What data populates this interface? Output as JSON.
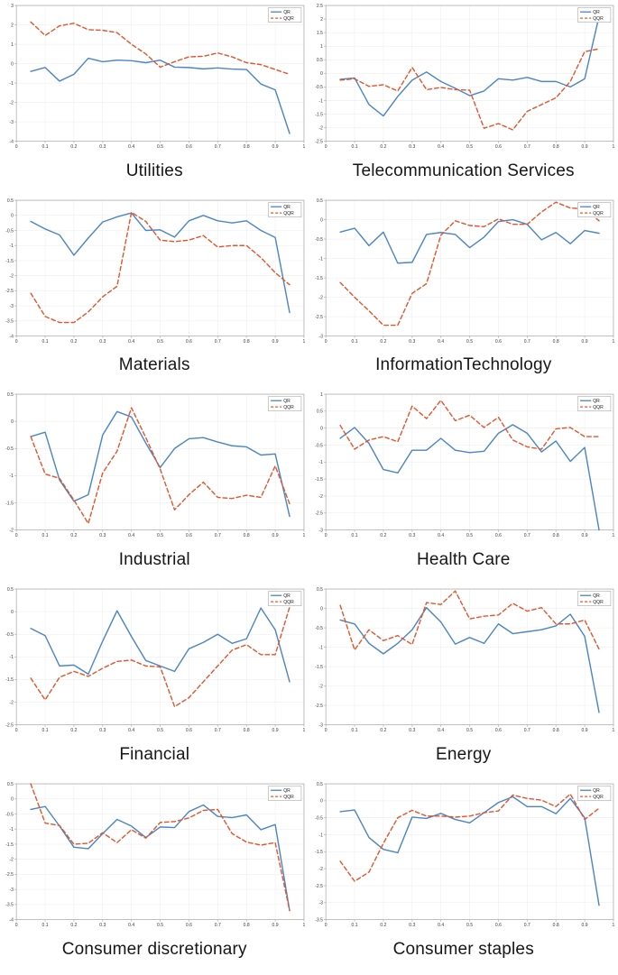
{
  "page": {
    "background": "#ffffff"
  },
  "style": {
    "qr_color": "#4a85c6",
    "qqr_color": "#e2552b",
    "grid_color": "#ebebeb",
    "axis_color": "#a8a8a8",
    "tick_text_color": "#3a3a3a",
    "legend_border_color": "#999999"
  },
  "chart_data": [
    {
      "type": "line",
      "title": "Utilities",
      "xlabel": "",
      "ylabel": "",
      "xlim": [
        0,
        1
      ],
      "ylim": [
        -4,
        3
      ],
      "xticks": [
        0,
        0.1,
        0.2,
        0.3,
        0.4,
        0.5,
        0.6,
        0.7,
        0.8,
        0.9,
        1
      ],
      "yticks": [
        3,
        2,
        1,
        0,
        -1,
        -2,
        -3,
        -4
      ],
      "grid": true,
      "legend_position": "top-right",
      "x": [
        0.05,
        0.1,
        0.15,
        0.2,
        0.25,
        0.3,
        0.35,
        0.4,
        0.45,
        0.5,
        0.55,
        0.6,
        0.65,
        0.7,
        0.75,
        0.8,
        0.85,
        0.9,
        0.95
      ],
      "series": [
        {
          "name": "QR",
          "style": "solid",
          "color": "#4a85c6",
          "values": [
            -0.4,
            -0.2,
            -0.9,
            -0.55,
            0.28,
            0.1,
            0.18,
            0.15,
            0.05,
            0.18,
            -0.18,
            -0.2,
            -0.27,
            -0.22,
            -0.28,
            -0.3,
            -1.05,
            -1.35,
            -3.6
          ]
        },
        {
          "name": "QQR",
          "style": "dashed",
          "color": "#e2552b",
          "values": [
            2.15,
            1.45,
            1.95,
            2.08,
            1.75,
            1.72,
            1.6,
            1.0,
            0.5,
            -0.18,
            0.1,
            0.35,
            0.38,
            0.55,
            0.35,
            0.05,
            -0.05,
            -0.3,
            -0.55
          ]
        }
      ]
    },
    {
      "type": "line",
      "title": "Telecommunication Services",
      "xlabel": "",
      "ylabel": "",
      "xlim": [
        0,
        1
      ],
      "ylim": [
        -2.5,
        2.5
      ],
      "xticks": [
        0,
        0.1,
        0.2,
        0.3,
        0.4,
        0.5,
        0.6,
        0.7,
        0.8,
        0.9,
        1
      ],
      "yticks": [
        2.5,
        2,
        1.5,
        1,
        0.5,
        0,
        -0.5,
        -1,
        -1.5,
        -2,
        -2.5
      ],
      "grid": true,
      "legend_position": "top-right",
      "x": [
        0.05,
        0.1,
        0.15,
        0.2,
        0.25,
        0.3,
        0.35,
        0.4,
        0.45,
        0.5,
        0.55,
        0.6,
        0.65,
        0.7,
        0.75,
        0.8,
        0.85,
        0.9,
        0.95
      ],
      "series": [
        {
          "name": "QR",
          "style": "solid",
          "color": "#4a85c6",
          "values": [
            -0.22,
            -0.17,
            -1.15,
            -1.57,
            -0.85,
            -0.25,
            0.05,
            -0.3,
            -0.55,
            -0.82,
            -0.65,
            -0.2,
            -0.25,
            -0.15,
            -0.3,
            -0.3,
            -0.5,
            -0.2,
            2.1
          ]
        },
        {
          "name": "QQR",
          "style": "dashed",
          "color": "#e2552b",
          "values": [
            -0.25,
            -0.2,
            -0.48,
            -0.42,
            -0.65,
            0.22,
            -0.6,
            -0.52,
            -0.6,
            -0.62,
            -2.02,
            -1.85,
            -2.08,
            -1.4,
            -1.15,
            -0.9,
            -0.3,
            0.8,
            0.9
          ]
        }
      ]
    },
    {
      "type": "line",
      "title": "Materials",
      "xlabel": "",
      "ylabel": "",
      "xlim": [
        0,
        1
      ],
      "ylim": [
        -4,
        0.5
      ],
      "xticks": [
        0,
        0.1,
        0.2,
        0.3,
        0.4,
        0.5,
        0.6,
        0.7,
        0.8,
        0.9,
        1
      ],
      "yticks": [
        0.5,
        0,
        -0.5,
        -1,
        -1.5,
        -2,
        -2.5,
        -3,
        -3.5,
        -4
      ],
      "grid": true,
      "legend_position": "top-right",
      "x": [
        0.05,
        0.1,
        0.15,
        0.2,
        0.25,
        0.3,
        0.35,
        0.4,
        0.45,
        0.5,
        0.55,
        0.6,
        0.65,
        0.7,
        0.75,
        0.8,
        0.85,
        0.9,
        0.95
      ],
      "series": [
        {
          "name": "QR",
          "style": "solid",
          "color": "#4a85c6",
          "values": [
            -0.2,
            -0.45,
            -0.65,
            -1.32,
            -0.75,
            -0.22,
            -0.05,
            0.08,
            -0.5,
            -0.48,
            -0.72,
            -0.18,
            0.0,
            -0.18,
            -0.25,
            -0.18,
            -0.5,
            -0.73,
            -3.22
          ]
        },
        {
          "name": "QQR",
          "style": "dashed",
          "color": "#e2552b",
          "values": [
            -2.58,
            -3.35,
            -3.55,
            -3.55,
            -3.2,
            -2.7,
            -2.35,
            0.1,
            -0.2,
            -0.82,
            -0.87,
            -0.82,
            -0.67,
            -1.05,
            -1.0,
            -1.0,
            -1.4,
            -1.9,
            -2.3
          ]
        }
      ]
    },
    {
      "type": "line",
      "title": "InformationTechnology",
      "xlabel": "",
      "ylabel": "",
      "xlim": [
        0,
        1
      ],
      "ylim": [
        -3,
        0.5
      ],
      "xticks": [
        0,
        0.1,
        0.2,
        0.3,
        0.4,
        0.5,
        0.6,
        0.7,
        0.8,
        0.9,
        1
      ],
      "yticks": [
        0.5,
        0,
        -0.5,
        -1,
        -1.5,
        -2,
        -2.5,
        -3
      ],
      "grid": true,
      "legend_position": "top-right",
      "x": [
        0.05,
        0.1,
        0.15,
        0.2,
        0.25,
        0.3,
        0.35,
        0.4,
        0.45,
        0.5,
        0.55,
        0.6,
        0.65,
        0.7,
        0.75,
        0.8,
        0.85,
        0.9,
        0.95
      ],
      "series": [
        {
          "name": "QR",
          "style": "solid",
          "color": "#4a85c6",
          "values": [
            -0.32,
            -0.22,
            -0.67,
            -0.32,
            -1.12,
            -1.1,
            -0.38,
            -0.33,
            -0.38,
            -0.72,
            -0.45,
            -0.05,
            0.0,
            -0.12,
            -0.52,
            -0.33,
            -0.62,
            -0.28,
            -0.35
          ]
        },
        {
          "name": "QQR",
          "style": "dashed",
          "color": "#e2552b",
          "values": [
            -1.62,
            -2.0,
            -2.35,
            -2.72,
            -2.72,
            -1.9,
            -1.65,
            -0.4,
            -0.03,
            -0.15,
            -0.18,
            0.02,
            -0.12,
            -0.12,
            0.2,
            0.45,
            0.3,
            0.28,
            -0.03
          ]
        }
      ]
    },
    {
      "type": "line",
      "title": "Industrial",
      "xlabel": "",
      "ylabel": "",
      "xlim": [
        0,
        1
      ],
      "ylim": [
        -2,
        0.5
      ],
      "xticks": [
        0,
        0.1,
        0.2,
        0.3,
        0.4,
        0.5,
        0.6,
        0.7,
        0.8,
        0.9,
        1
      ],
      "yticks": [
        0.5,
        0,
        -0.5,
        -1,
        -1.5,
        -2
      ],
      "grid": true,
      "legend_position": "top-right",
      "x": [
        0.05,
        0.1,
        0.15,
        0.2,
        0.25,
        0.3,
        0.35,
        0.4,
        0.45,
        0.5,
        0.55,
        0.6,
        0.65,
        0.7,
        0.75,
        0.8,
        0.85,
        0.9,
        0.95
      ],
      "series": [
        {
          "name": "QR",
          "style": "solid",
          "color": "#4a85c6",
          "values": [
            -0.28,
            -0.2,
            -1.08,
            -1.47,
            -1.35,
            -0.25,
            0.18,
            0.08,
            -0.4,
            -0.85,
            -0.5,
            -0.32,
            -0.3,
            -0.38,
            -0.45,
            -0.47,
            -0.62,
            -0.6,
            -1.75
          ]
        },
        {
          "name": "QQR",
          "style": "dashed",
          "color": "#e2552b",
          "values": [
            -0.28,
            -0.97,
            -1.05,
            -1.45,
            -1.88,
            -0.95,
            -0.55,
            0.25,
            -0.3,
            -0.88,
            -1.63,
            -1.35,
            -1.12,
            -1.4,
            -1.42,
            -1.36,
            -1.4,
            -0.82,
            -1.52
          ]
        }
      ]
    },
    {
      "type": "line",
      "title": "Health Care",
      "xlabel": "",
      "ylabel": "",
      "xlim": [
        0,
        1
      ],
      "ylim": [
        -3,
        1
      ],
      "xticks": [
        0,
        0.1,
        0.2,
        0.3,
        0.4,
        0.5,
        0.6,
        0.7,
        0.8,
        0.9,
        1
      ],
      "yticks": [
        1,
        0.5,
        0,
        -0.5,
        -1,
        -1.5,
        -2,
        -2.5,
        -3
      ],
      "grid": true,
      "legend_position": "top-right",
      "x": [
        0.05,
        0.1,
        0.15,
        0.2,
        0.25,
        0.3,
        0.35,
        0.4,
        0.45,
        0.5,
        0.55,
        0.6,
        0.65,
        0.7,
        0.75,
        0.8,
        0.85,
        0.9,
        0.95
      ],
      "series": [
        {
          "name": "QR",
          "style": "solid",
          "color": "#4a85c6",
          "values": [
            -0.3,
            0.02,
            -0.45,
            -1.22,
            -1.32,
            -0.65,
            -0.65,
            -0.3,
            -0.65,
            -0.72,
            -0.68,
            -0.15,
            0.1,
            -0.15,
            -0.7,
            -0.38,
            -0.98,
            -0.57,
            -3.0
          ]
        },
        {
          "name": "QQR",
          "style": "dashed",
          "color": "#e2552b",
          "values": [
            0.08,
            -0.62,
            -0.35,
            -0.25,
            -0.4,
            0.65,
            0.28,
            0.82,
            0.22,
            0.38,
            0.02,
            0.32,
            -0.35,
            -0.55,
            -0.62,
            -0.02,
            0.02,
            -0.25,
            -0.25
          ]
        }
      ]
    },
    {
      "type": "line",
      "title": "Financial",
      "xlabel": "",
      "ylabel": "",
      "xlim": [
        0,
        1
      ],
      "ylim": [
        -2.5,
        0.5
      ],
      "xticks": [
        0,
        0.1,
        0.2,
        0.3,
        0.4,
        0.5,
        0.6,
        0.7,
        0.8,
        0.9,
        1
      ],
      "yticks": [
        0.5,
        0,
        -0.5,
        -1,
        -1.5,
        -2,
        -2.5
      ],
      "grid": true,
      "legend_position": "top-right",
      "x": [
        0.05,
        0.1,
        0.15,
        0.2,
        0.25,
        0.3,
        0.35,
        0.4,
        0.45,
        0.5,
        0.55,
        0.6,
        0.65,
        0.7,
        0.75,
        0.8,
        0.85,
        0.9,
        0.95
      ],
      "series": [
        {
          "name": "QR",
          "style": "solid",
          "color": "#4a85c6",
          "values": [
            -0.37,
            -0.53,
            -1.2,
            -1.18,
            -1.38,
            -0.65,
            0.02,
            -0.55,
            -1.08,
            -1.2,
            -1.32,
            -0.82,
            -0.68,
            -0.5,
            -0.7,
            -0.6,
            0.08,
            -0.4,
            -1.55
          ]
        },
        {
          "name": "QQR",
          "style": "dashed",
          "color": "#e2552b",
          "values": [
            -1.47,
            -1.95,
            -1.45,
            -1.32,
            -1.43,
            -1.25,
            -1.1,
            -1.07,
            -1.2,
            -1.22,
            -2.1,
            -1.9,
            -1.55,
            -1.2,
            -0.85,
            -0.73,
            -0.95,
            -0.95,
            0.1
          ]
        }
      ]
    },
    {
      "type": "line",
      "title": "Energy",
      "xlabel": "",
      "ylabel": "",
      "xlim": [
        0,
        1
      ],
      "ylim": [
        -3,
        0.5
      ],
      "xticks": [
        0,
        0.1,
        0.2,
        0.3,
        0.4,
        0.5,
        0.6,
        0.7,
        0.8,
        0.9,
        1
      ],
      "yticks": [
        0.5,
        0,
        -0.5,
        -1,
        -1.5,
        -2,
        -2.5,
        -3
      ],
      "grid": true,
      "legend_position": "top-right",
      "x": [
        0.05,
        0.1,
        0.15,
        0.2,
        0.25,
        0.3,
        0.35,
        0.4,
        0.45,
        0.5,
        0.55,
        0.6,
        0.65,
        0.7,
        0.75,
        0.8,
        0.85,
        0.9,
        0.95
      ],
      "series": [
        {
          "name": "QR",
          "style": "solid",
          "color": "#4a85c6",
          "values": [
            -0.3,
            -0.4,
            -0.9,
            -1.17,
            -0.9,
            -0.55,
            0.02,
            -0.35,
            -0.92,
            -0.75,
            -0.9,
            -0.4,
            -0.65,
            -0.6,
            -0.55,
            -0.45,
            -0.15,
            -0.72,
            -2.68
          ]
        },
        {
          "name": "QQR",
          "style": "dashed",
          "color": "#e2552b",
          "values": [
            0.08,
            -1.07,
            -0.55,
            -0.83,
            -0.7,
            -0.93,
            0.15,
            0.1,
            0.45,
            -0.27,
            -0.2,
            -0.17,
            0.13,
            -0.07,
            0.02,
            -0.4,
            -0.4,
            -0.3,
            -1.05
          ]
        }
      ]
    },
    {
      "type": "line",
      "title": "Consumer discretionary",
      "xlabel": "",
      "ylabel": "",
      "xlim": [
        0,
        1
      ],
      "ylim": [
        -4,
        0.5
      ],
      "xticks": [
        0,
        0.1,
        0.2,
        0.3,
        0.4,
        0.5,
        0.6,
        0.7,
        0.8,
        0.9,
        1
      ],
      "yticks": [
        0.5,
        0,
        -0.5,
        -1,
        -1.5,
        -2,
        -2.5,
        -3,
        -3.5,
        -4
      ],
      "grid": true,
      "legend_position": "top-right",
      "x": [
        0.05,
        0.1,
        0.15,
        0.2,
        0.25,
        0.3,
        0.35,
        0.4,
        0.45,
        0.5,
        0.55,
        0.6,
        0.65,
        0.7,
        0.75,
        0.8,
        0.85,
        0.9,
        0.95
      ],
      "series": [
        {
          "name": "QR",
          "style": "solid",
          "color": "#4a85c6",
          "values": [
            -0.35,
            -0.25,
            -0.9,
            -1.6,
            -1.65,
            -1.15,
            -0.68,
            -0.9,
            -1.28,
            -0.93,
            -0.95,
            -0.42,
            -0.2,
            -0.58,
            -0.62,
            -0.53,
            -1.02,
            -0.85,
            -3.7
          ]
        },
        {
          "name": "QQR",
          "style": "dashed",
          "color": "#e2552b",
          "values": [
            0.5,
            -0.8,
            -0.88,
            -1.5,
            -1.47,
            -1.12,
            -1.45,
            -1.02,
            -1.3,
            -0.78,
            -0.75,
            -0.63,
            -0.38,
            -0.35,
            -1.15,
            -1.43,
            -1.53,
            -1.45,
            -3.7
          ]
        }
      ]
    },
    {
      "type": "line",
      "title": "Consumer staples",
      "xlabel": "",
      "ylabel": "",
      "xlim": [
        0,
        1
      ],
      "ylim": [
        -3.5,
        0.5
      ],
      "xticks": [
        0,
        0.1,
        0.2,
        0.3,
        0.4,
        0.5,
        0.6,
        0.7,
        0.8,
        0.9,
        1
      ],
      "yticks": [
        0.5,
        0,
        -0.5,
        -1,
        -1.5,
        -2,
        -2.5,
        -3,
        -3.5
      ],
      "grid": true,
      "legend_position": "top-right",
      "x": [
        0.05,
        0.1,
        0.15,
        0.2,
        0.25,
        0.3,
        0.35,
        0.4,
        0.45,
        0.5,
        0.55,
        0.6,
        0.65,
        0.7,
        0.75,
        0.8,
        0.85,
        0.9,
        0.95
      ],
      "series": [
        {
          "name": "QR",
          "style": "solid",
          "color": "#4a85c6",
          "values": [
            -0.32,
            -0.27,
            -1.08,
            -1.43,
            -1.53,
            -0.48,
            -0.52,
            -0.37,
            -0.55,
            -0.65,
            -0.35,
            -0.05,
            0.12,
            -0.17,
            -0.17,
            -0.38,
            0.07,
            -0.5,
            -3.08
          ]
        },
        {
          "name": "QQR",
          "style": "dashed",
          "color": "#e2552b",
          "values": [
            -1.78,
            -2.37,
            -2.1,
            -1.25,
            -0.5,
            -0.28,
            -0.45,
            -0.45,
            -0.48,
            -0.45,
            -0.35,
            -0.3,
            0.17,
            0.07,
            0.02,
            -0.17,
            0.2,
            -0.55,
            -0.22
          ]
        }
      ]
    }
  ]
}
